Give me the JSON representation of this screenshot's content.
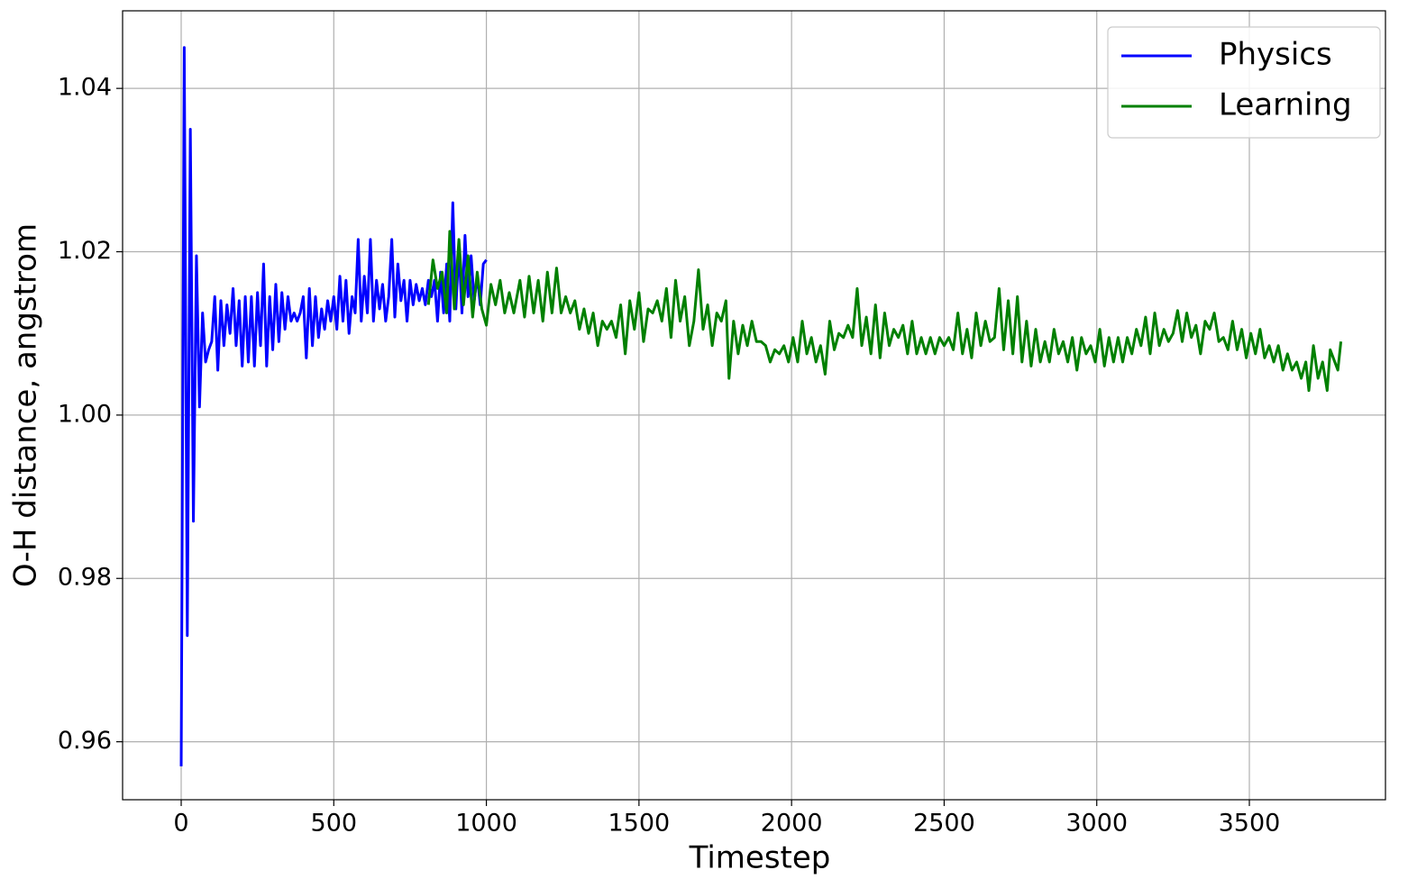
{
  "chart_data": {
    "type": "line",
    "xlabel": "Timestep",
    "ylabel": "O-H distance, angstrom",
    "xlim": [
      -192,
      3946
    ],
    "ylim": [
      0.9529,
      1.0495
    ],
    "xticks": [
      0,
      500,
      1000,
      1500,
      2000,
      2500,
      3000,
      3500
    ],
    "yticks": [
      0.96,
      0.98,
      {
        "value": 1.0,
        "label": "1.00"
      },
      1.02,
      1.04
    ],
    "grid": true,
    "legend": "upper right",
    "series": [
      {
        "name": "Physics",
        "color": "#0000ff",
        "x": [
          0,
          10,
          20,
          30,
          40,
          50,
          60,
          70,
          80,
          90,
          100,
          110,
          120,
          130,
          140,
          150,
          160,
          170,
          180,
          190,
          200,
          210,
          220,
          230,
          240,
          250,
          260,
          270,
          280,
          290,
          300,
          310,
          320,
          330,
          340,
          350,
          360,
          370,
          380,
          390,
          400,
          410,
          420,
          430,
          440,
          450,
          460,
          470,
          480,
          490,
          500,
          510,
          520,
          530,
          540,
          550,
          560,
          570,
          580,
          590,
          600,
          610,
          620,
          630,
          640,
          650,
          660,
          670,
          680,
          690,
          700,
          710,
          720,
          730,
          740,
          750,
          760,
          770,
          780,
          790,
          800,
          810,
          820,
          830,
          840,
          850,
          860,
          870,
          880,
          890,
          900,
          910,
          920,
          930,
          940,
          950,
          960,
          970,
          980,
          990,
          1000
        ],
        "values": [
          0.957,
          1.045,
          0.973,
          1.035,
          0.987,
          1.0195,
          1.001,
          1.0125,
          1.0065,
          1.008,
          1.009,
          1.0145,
          1.0055,
          1.014,
          1.0085,
          1.0135,
          1.01,
          1.0155,
          1.0085,
          1.014,
          1.006,
          1.0145,
          1.0065,
          1.0145,
          1.006,
          1.015,
          1.0085,
          1.0185,
          1.006,
          1.0145,
          1.008,
          1.016,
          1.009,
          1.015,
          1.0105,
          1.0145,
          1.0115,
          1.0125,
          1.0115,
          1.0125,
          1.0145,
          1.007,
          1.0155,
          1.0085,
          1.0145,
          1.0095,
          1.013,
          1.0105,
          1.014,
          1.0115,
          1.0145,
          1.0105,
          1.017,
          1.0115,
          1.0165,
          1.01,
          1.0145,
          1.0125,
          1.0215,
          1.0115,
          1.017,
          1.0125,
          1.0215,
          1.0115,
          1.0165,
          1.013,
          1.016,
          1.0115,
          1.0145,
          1.0215,
          1.012,
          1.0185,
          1.014,
          1.0165,
          1.0115,
          1.0165,
          1.0135,
          1.016,
          1.014,
          1.0155,
          1.0135,
          1.0165,
          1.0145,
          1.0165,
          1.0115,
          1.0175,
          1.0125,
          1.0185,
          1.0115,
          1.026,
          1.013,
          1.0205,
          1.0125,
          1.022,
          1.0145,
          1.0195,
          1.014,
          1.017,
          1.0135,
          1.0185,
          1.019
        ]
      },
      {
        "name": "Learning",
        "color": "#008000",
        "x": [
          810,
          825,
          840,
          855,
          870,
          880,
          895,
          910,
          925,
          940,
          955,
          970,
          985,
          1000,
          1015,
          1030,
          1045,
          1060,
          1075,
          1090,
          1110,
          1125,
          1140,
          1155,
          1170,
          1185,
          1200,
          1215,
          1230,
          1245,
          1260,
          1275,
          1290,
          1305,
          1320,
          1335,
          1350,
          1365,
          1380,
          1395,
          1410,
          1425,
          1440,
          1455,
          1470,
          1485,
          1500,
          1515,
          1530,
          1545,
          1560,
          1575,
          1590,
          1605,
          1620,
          1635,
          1650,
          1665,
          1680,
          1695,
          1710,
          1725,
          1740,
          1755,
          1770,
          1785,
          1795,
          1810,
          1825,
          1840,
          1855,
          1870,
          1885,
          1900,
          1915,
          1930,
          1945,
          1960,
          1975,
          1990,
          2005,
          2020,
          2035,
          2050,
          2065,
          2080,
          2095,
          2110,
          2125,
          2140,
          2155,
          2170,
          2185,
          2200,
          2215,
          2230,
          2245,
          2260,
          2275,
          2290,
          2305,
          2320,
          2335,
          2350,
          2365,
          2380,
          2395,
          2410,
          2425,
          2440,
          2455,
          2470,
          2485,
          2500,
          2515,
          2530,
          2545,
          2560,
          2575,
          2590,
          2605,
          2620,
          2635,
          2650,
          2665,
          2680,
          2695,
          2710,
          2725,
          2740,
          2755,
          2770,
          2785,
          2800,
          2815,
          2830,
          2845,
          2860,
          2875,
          2890,
          2905,
          2920,
          2935,
          2950,
          2965,
          2980,
          2995,
          3010,
          3025,
          3040,
          3055,
          3070,
          3085,
          3100,
          3115,
          3130,
          3145,
          3160,
          3175,
          3190,
          3205,
          3220,
          3235,
          3250,
          3265,
          3280,
          3295,
          3310,
          3325,
          3340,
          3355,
          3370,
          3385,
          3400,
          3415,
          3430,
          3445,
          3460,
          3475,
          3490,
          3505,
          3520,
          3535,
          3550,
          3565,
          3580,
          3595,
          3610,
          3625,
          3640,
          3655,
          3670,
          3685,
          3695,
          3710,
          3725,
          3740,
          3755,
          3765,
          3780,
          3790,
          3800
        ],
        "values": [
          1.0135,
          1.019,
          1.0155,
          1.0175,
          1.0125,
          1.0225,
          1.013,
          1.0215,
          1.0135,
          1.0195,
          1.012,
          1.0175,
          1.013,
          1.011,
          1.016,
          1.0135,
          1.0165,
          1.0125,
          1.015,
          1.0125,
          1.0165,
          1.012,
          1.017,
          1.0125,
          1.0165,
          1.0115,
          1.0175,
          1.0125,
          1.018,
          1.0125,
          1.0145,
          1.0125,
          1.014,
          1.0105,
          1.013,
          1.01,
          1.0125,
          1.0085,
          1.0115,
          1.0105,
          1.0115,
          1.0095,
          1.0135,
          1.0075,
          1.014,
          1.0105,
          1.015,
          1.009,
          1.013,
          1.0125,
          1.014,
          1.0115,
          1.0155,
          1.0095,
          1.0165,
          1.0115,
          1.0145,
          1.0085,
          1.0115,
          1.0178,
          1.0105,
          1.0135,
          1.0085,
          1.0125,
          1.0115,
          1.014,
          1.0045,
          1.0115,
          1.0075,
          1.011,
          1.0085,
          1.0115,
          1.009,
          1.009,
          1.0085,
          1.0065,
          1.008,
          1.0075,
          1.0085,
          1.0065,
          1.0095,
          1.0065,
          1.0115,
          1.0075,
          1.0095,
          1.0065,
          1.0085,
          1.005,
          1.0115,
          1.008,
          1.01,
          1.0095,
          1.011,
          1.0095,
          1.0155,
          1.0085,
          1.012,
          1.0075,
          1.0135,
          1.007,
          1.0125,
          1.0085,
          1.0105,
          1.0095,
          1.011,
          1.0075,
          1.0115,
          1.0075,
          1.0095,
          1.0075,
          1.0095,
          1.0075,
          1.0095,
          1.0085,
          1.0095,
          1.008,
          1.0125,
          1.0075,
          1.0105,
          1.007,
          1.0125,
          1.0085,
          1.0115,
          1.009,
          1.0095,
          1.0155,
          1.008,
          1.014,
          1.0075,
          1.0145,
          1.0065,
          1.0115,
          1.006,
          1.0105,
          1.0065,
          1.009,
          1.0065,
          1.0105,
          1.0075,
          1.009,
          1.0065,
          1.0095,
          1.0055,
          1.0095,
          1.0075,
          1.0085,
          1.0065,
          1.0105,
          1.006,
          1.0095,
          1.0065,
          1.0095,
          1.0065,
          1.0095,
          1.0075,
          1.0105,
          1.0085,
          1.012,
          1.0075,
          1.0125,
          1.0085,
          1.0105,
          1.009,
          1.01,
          1.0128,
          1.009,
          1.0125,
          1.0095,
          1.011,
          1.0075,
          1.0115,
          1.0105,
          1.0125,
          1.009,
          1.0095,
          1.008,
          1.0115,
          1.008,
          1.0105,
          1.007,
          1.01,
          1.0075,
          1.0105,
          1.007,
          1.0085,
          1.0065,
          1.0085,
          1.0055,
          1.0075,
          1.0055,
          1.0065,
          1.0045,
          1.0065,
          1.003,
          1.0085,
          1.0045,
          1.0065,
          1.003,
          1.008,
          1.0065,
          1.0055,
          1.009
        ]
      }
    ]
  }
}
